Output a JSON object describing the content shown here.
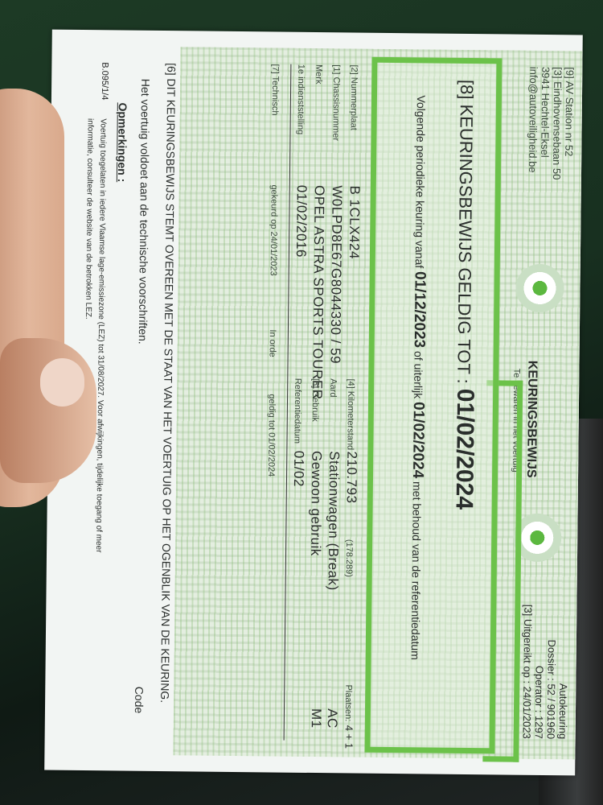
{
  "header": {
    "station": "[9] AV Station nr 52",
    "street": "[3] Eindhovensebaan 50",
    "city": "3941 Hechtel-Eksel",
    "email": "info@autoveiligheid.be",
    "doc_title": "KEURINGSBEWIJS",
    "doc_subtitle": "Te bewaren in het voertuig",
    "org": "Autokeuring",
    "dossier": "Dossier : 52 / 901960",
    "operator": "Operator : 1297",
    "issued": "[3] Uitgereikt op : 24/01/2023"
  },
  "validity": {
    "label": "[8] KEURINGSBEWIJS GELDIG TOT :",
    "date": "01/02/2024",
    "next_prefix": "Volgende periodieke keuring vanaf",
    "next_from": "01/12/2023",
    "next_mid": "of uiterlijk",
    "next_until": "01/02/2024",
    "next_suffix": "met behoud van de referentiedatum"
  },
  "fields": [
    {
      "label": "[2] Nummerplaat",
      "value": "B 1CLX424"
    },
    {
      "label": "[1] Chassisnummer",
      "value": "W0LPD8E67G8044330 / 59"
    },
    {
      "label": "Merk",
      "value": "OPEL ASTRA SPORTS TOURER"
    },
    {
      "label": "1e indienststelling",
      "value": "01/02/2016"
    }
  ],
  "fields_right": [
    {
      "label": "[4] Kilometerstand",
      "value": "210.793",
      "extra": "(178.289)"
    },
    {
      "label": "Aard",
      "value": "Stationwagen (Break)"
    },
    {
      "label": "[5] Gebruik",
      "value": "Gewoon gebruik"
    },
    {
      "label": "Referentiedatum",
      "value": "01/02"
    }
  ],
  "fields_far": [
    {
      "label": "Plaatsen:",
      "value": "4 + 1"
    },
    {
      "value": "AC"
    },
    {
      "value": "M1"
    }
  ],
  "technical": {
    "label": "[7] Technisch",
    "checked": "gekeurd op 24/01/2023",
    "status": "In orde",
    "valid": "geldig tot 01/02/2024"
  },
  "statement": "[6] DIT KEURINGSBEWIJS STEMT OVEREEN MET DE STAAT VAN HET VOERTUIG OP HET OGENBLIK VAN DE KEURING.",
  "compliance": "Het voertuig voldoet aan de technische voorschriften.",
  "code_label": "Code",
  "remarks": {
    "title": "Opmerkingen :",
    "code": "B.095/1/4",
    "line1": "Voertuig toegelaten in iedere Vlaamse lage-emissiezone (LEZ) tot 31/08/2027. Voor afwijkingen, tijdelijke toegang of meer",
    "line2": "informatie, consulteer de website van de betrokken LEZ."
  },
  "colors": {
    "accent": "#6cc24a",
    "pattern": "#e4eee0"
  }
}
